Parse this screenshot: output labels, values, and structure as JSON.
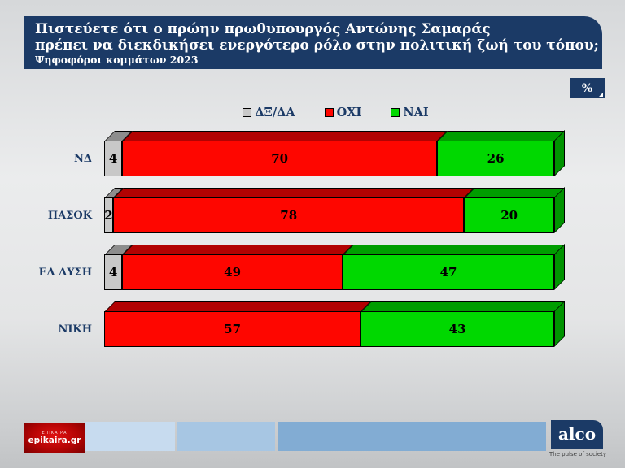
{
  "header": {
    "line1": "Πιστεύετε ότι ο πρώην πρωθυπουργός Αντώνης Σαμαράς",
    "line2": "πρέπει να διεκδικήσει ενεργότερο ρόλο στην πολιτική ζωή του τόπου;",
    "subtitle": "Ψηφοφόροι κομμάτων 2023",
    "unit_badge": "%"
  },
  "chart_data": {
    "type": "bar",
    "orientation": "horizontal",
    "stacked": true,
    "style": "3d",
    "title": "Πιστεύετε ότι ο πρώην πρωθυπουργός Αντώνης Σαμαράς πρέπει να διεκδικήσει ενεργότερο ρόλο στην πολιτική ζωή του τόπου; Ψηφοφόροι κομμάτων 2023",
    "categories": [
      "ΝΔ",
      "ΠΑΣΟΚ",
      "ΕΛ ΛΥΣΗ",
      "ΝΙΚΗ"
    ],
    "series": [
      {
        "name": "ΔΞ/ΔΑ",
        "color": "#c8c8c8",
        "top_color": "#8d8d8d",
        "side_color": "#7e7e7e",
        "values": [
          4,
          2,
          4,
          0
        ]
      },
      {
        "name": "ΟΧΙ",
        "color": "#fe0600",
        "top_color": "#b20202",
        "side_color": "#a00000",
        "values": [
          70,
          78,
          49,
          57
        ]
      },
      {
        "name": "ΝΑΙ",
        "color": "#00d800",
        "top_color": "#009d00",
        "side_color": "#009300",
        "values": [
          26,
          20,
          47,
          43
        ]
      }
    ],
    "xlim": [
      0,
      100
    ],
    "unit": "%",
    "legend_position": "top",
    "value_labels": "inside",
    "grid": false
  },
  "footer": {
    "epikaira": {
      "tagline": "ΕΠΙΚΑΙΡΑ",
      "name": "epikaira.gr"
    },
    "alco": {
      "name": "alco",
      "tagline": "The pulse of society"
    }
  },
  "colors": {
    "navy": "#1b3a66",
    "strip_light": "#c7dbef",
    "strip_mid": "#a7c6e3",
    "strip_deep": "#82acd3"
  }
}
